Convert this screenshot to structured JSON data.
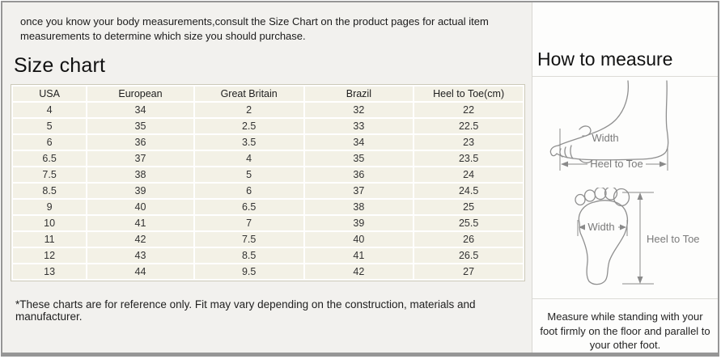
{
  "intro": {
    "text": "once you know your body measurements,consult the Size Chart on the product pages for actual item measurements to determine which size you should purchase."
  },
  "size_chart": {
    "title": "Size chart",
    "columns": [
      "USA",
      "European",
      "Great Britain",
      "Brazil",
      "Heel to Toe(cm)"
    ],
    "rows": [
      [
        "4",
        "34",
        "2",
        "32",
        "22"
      ],
      [
        "5",
        "35",
        "2.5",
        "33",
        "22.5"
      ],
      [
        "6",
        "36",
        "3.5",
        "34",
        "23"
      ],
      [
        "6.5",
        "37",
        "4",
        "35",
        "23.5"
      ],
      [
        "7.5",
        "38",
        "5",
        "36",
        "24"
      ],
      [
        "8.5",
        "39",
        "6",
        "37",
        "24.5"
      ],
      [
        "9",
        "40",
        "6.5",
        "38",
        "25"
      ],
      [
        "10",
        "41",
        "7",
        "39",
        "25.5"
      ],
      [
        "11",
        "42",
        "7.5",
        "40",
        "26"
      ],
      [
        "12",
        "43",
        "8.5",
        "41",
        "26.5"
      ],
      [
        "13",
        "44",
        "9.5",
        "42",
        "27"
      ]
    ],
    "footnote": "*These charts are for reference only. Fit may vary depending on the construction, materials and manufacturer."
  },
  "how_to_measure": {
    "title": "How to measure",
    "side_view": {
      "width_label": "Width",
      "length_label": "Heel to Toe"
    },
    "top_view": {
      "width_label": "Width",
      "length_label": "Heel to Toe"
    },
    "note": "Measure while standing with your foot firmly on the floor and parallel to your other foot."
  },
  "colors": {
    "frame_border": "#969696",
    "left_panel_bg": "#f2f1ee",
    "right_panel_bg": "#fdfdfc",
    "table_cell_bg": "#f3f1e6",
    "table_grid": "#ffffff",
    "table_border": "#ccc9b8",
    "sketch_stroke": "#8f8f8f",
    "sketch_label": "#7a7a7a"
  }
}
